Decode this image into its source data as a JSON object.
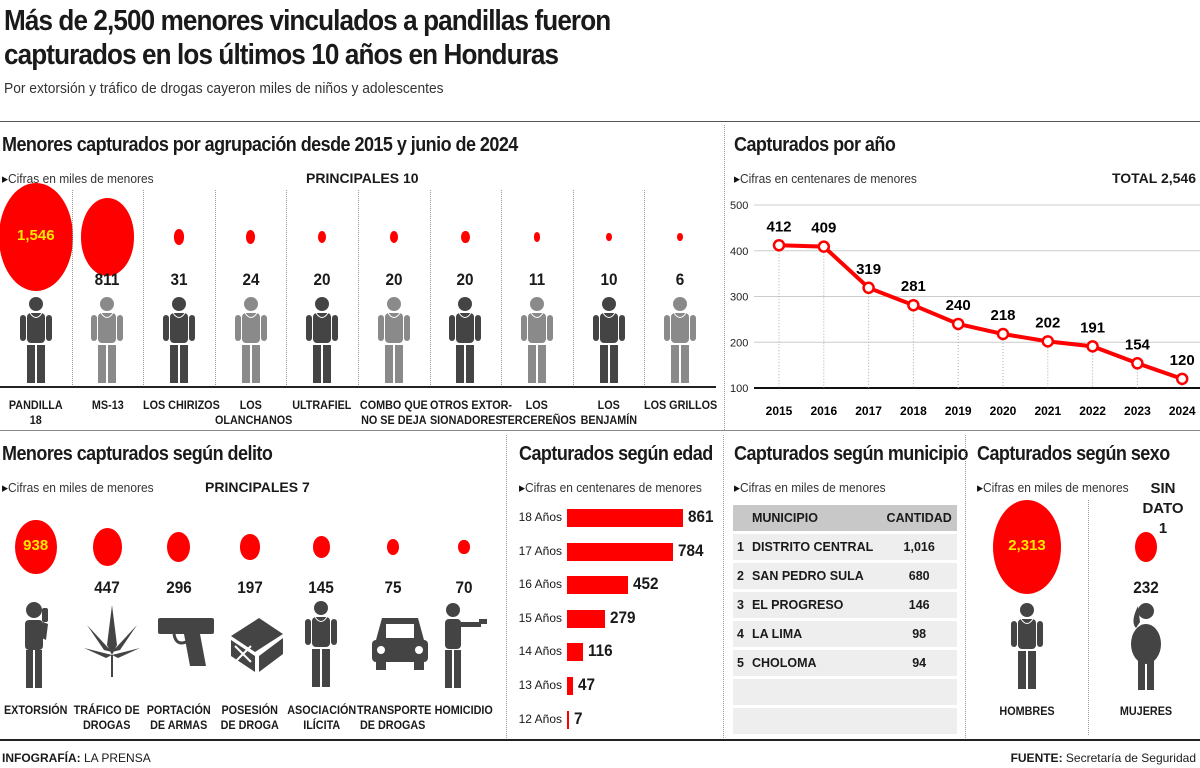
{
  "header": {
    "title_line1": "Más de 2,500 menores vinculados a pandillas fueron",
    "title_line2": "capturados en los últimos 10 años en Honduras",
    "subtitle": "Por extorsión y tráfico de drogas cayeron miles de niños y adolescentes"
  },
  "colors": {
    "accent": "#ff0000",
    "dark_figure": "#444444",
    "light_figure": "#8a8a8a",
    "circle_label": "#ffe600"
  },
  "footer": {
    "credit_label": "INFOGRAFÍA:",
    "credit_value": "LA PRENSA",
    "source_label": "FUENTE:",
    "source_value": "Secretaría de Seguridad"
  },
  "chart_data": [
    {
      "type": "bubble",
      "title": "Menores capturados por agrupación desde 2015 y junio de 2024",
      "note": "Cifras en miles de menores",
      "subtitle": "PRINCIPALES 10",
      "categories": [
        "PANDILLA 18",
        "MS-13",
        "LOS CHIRIZOS",
        "LOS OLANCHANOS",
        "ULTRAFIEL",
        "COMBO QUE NO SE DEJA",
        "OTROS EXTOR-SIONADORES",
        "LOS TERCEREÑOS",
        "LOS BENJAMÍN",
        "LOS GRILLOS"
      ],
      "labels": [
        "PANDILLA\n18",
        "MS-13",
        "LOS CHIRIZOS",
        "LOS\nOLANCHANOS",
        "ULTRAFIEL",
        "COMBO QUE\nNO SE DEJA",
        "OTROS EXTOR-\nSIONADORES",
        "LOS\nTERCEREÑOS",
        "LOS\nBENJAMÍN",
        "LOS GRILLOS"
      ],
      "values": [
        1546,
        811,
        31,
        24,
        20,
        20,
        20,
        11,
        10,
        6
      ],
      "value_labels": [
        "1,546",
        "811",
        "31",
        "24",
        "20",
        "20",
        "20",
        "11",
        "10",
        "6"
      ]
    },
    {
      "type": "line",
      "title": "Capturados por año",
      "note": "Cifras en centenares de menores",
      "total": "TOTAL 2,546",
      "x": [
        2015,
        2016,
        2017,
        2018,
        2019,
        2020,
        2021,
        2022,
        2023,
        2024
      ],
      "values": [
        412,
        409,
        319,
        281,
        240,
        218,
        202,
        191,
        154,
        120
      ],
      "ylim": [
        100,
        500
      ],
      "yticks": [
        100,
        200,
        300,
        400,
        500
      ],
      "grid": true
    },
    {
      "type": "bubble",
      "title": "Menores capturados según delito",
      "note": "Cifras en miles de menores",
      "subtitle": "PRINCIPALES 7",
      "categories": [
        "EXTORSIÓN",
        "TRÁFICO DE DROGAS",
        "PORTACIÓN DE ARMAS",
        "POSESIÓN DE DROGA",
        "ASOCIACIÓN ILÍCITA",
        "TRANSPORTE DE DROGAS",
        "HOMICIDIO"
      ],
      "labels": [
        "EXTORSIÓN",
        "TRÁFICO DE\nDROGAS",
        "PORTACIÓN\nDE ARMAS",
        "POSESIÓN\nDE DROGA",
        "ASOCIACIÓN\nILÍCITA",
        "TRANSPORTE\nDE DROGAS",
        "HOMICIDIO"
      ],
      "icons": [
        "phone-person-icon",
        "marijuana-leaf-icon",
        "pistol-icon",
        "drug-package-icon",
        "person-icon",
        "car-icon",
        "shooter-icon"
      ],
      "values": [
        938,
        447,
        296,
        197,
        145,
        75,
        70
      ],
      "value_labels": [
        "938",
        "447",
        "296",
        "197",
        "145",
        "75",
        "70"
      ]
    },
    {
      "type": "bar",
      "orientation": "horizontal",
      "title": "Capturados según edad",
      "note": "Cifras en centenares de menores",
      "categories": [
        "18 Años",
        "17 Años",
        "16 Años",
        "15 Años",
        "14 Años",
        "13 Años",
        "12 Años"
      ],
      "values": [
        861,
        784,
        452,
        279,
        116,
        47,
        7
      ]
    },
    {
      "type": "table",
      "title": "Capturados según municipio",
      "note": "Cifras en miles de menores",
      "columns": [
        "MUNICIPIO",
        "CANTIDAD"
      ],
      "rows": [
        [
          "1",
          "DISTRITO CENTRAL",
          "1,016"
        ],
        [
          "2",
          "SAN PEDRO SULA",
          "680"
        ],
        [
          "3",
          "EL PROGRESO",
          "146"
        ],
        [
          "4",
          "LA LIMA",
          "98"
        ],
        [
          "5",
          "CHOLOMA",
          "94"
        ]
      ]
    },
    {
      "type": "bubble",
      "title": "Capturados según sexo",
      "note": "Cifras en miles de menores",
      "extra": "SIN DATO 1",
      "categories": [
        "HOMBRES",
        "MUJERES"
      ],
      "values": [
        2313,
        232
      ],
      "value_labels": [
        "2,313",
        "232"
      ]
    }
  ]
}
